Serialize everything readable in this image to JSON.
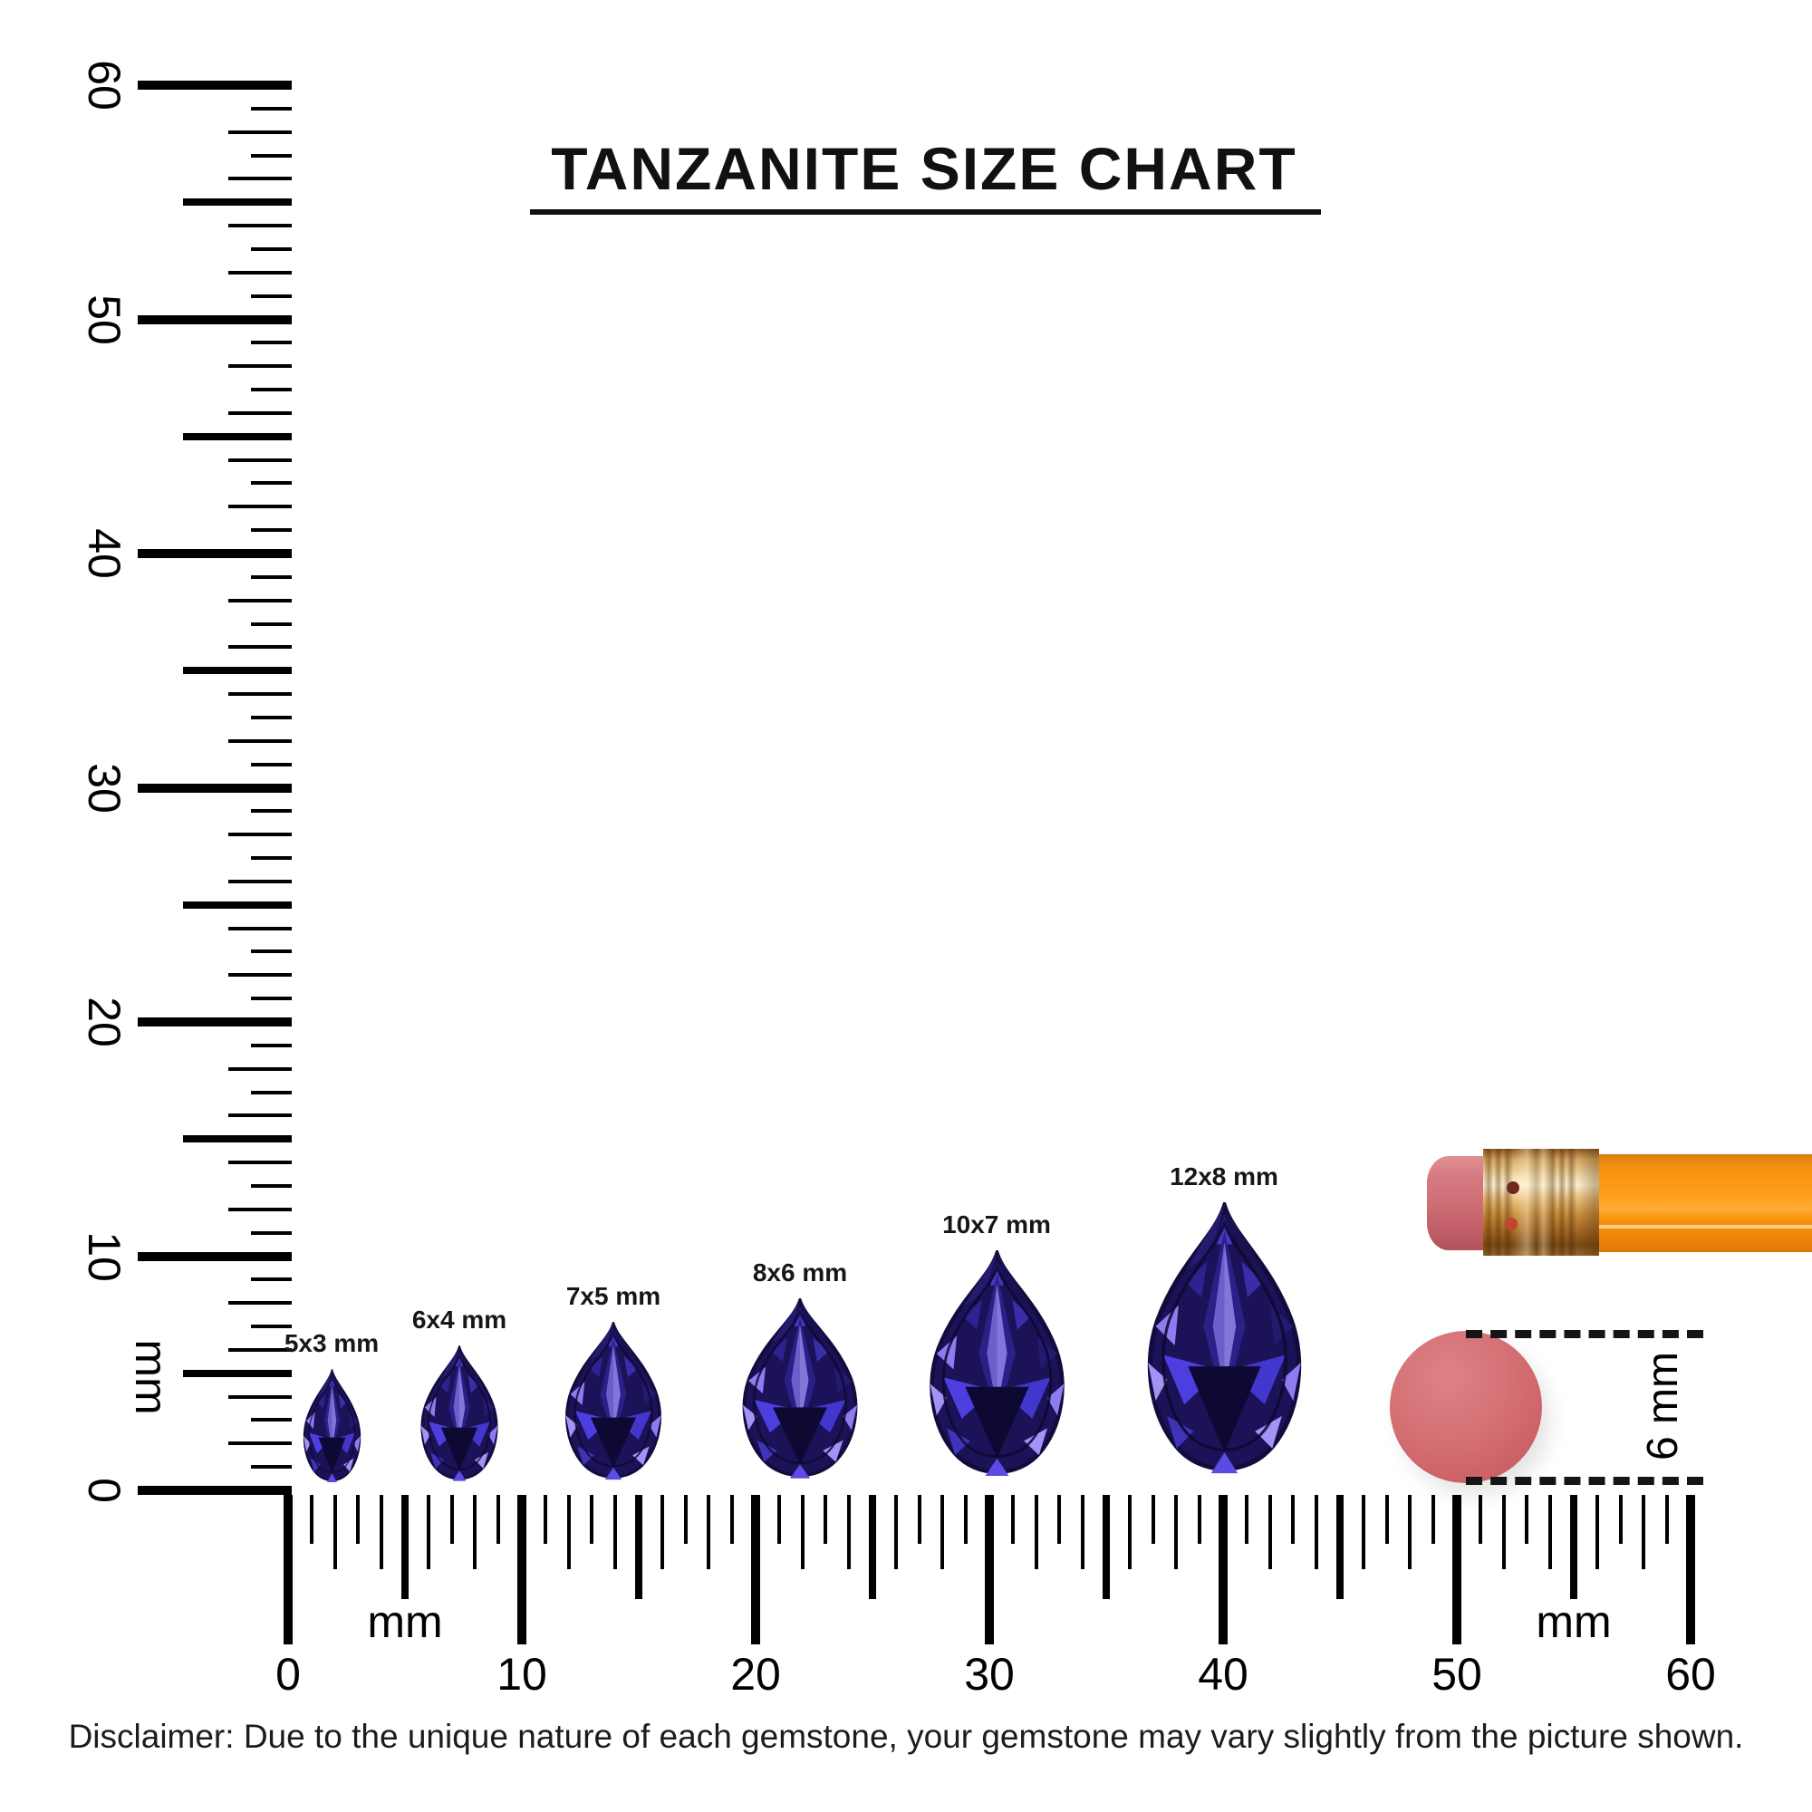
{
  "title": {
    "text": "TANZANITE SIZE CHART"
  },
  "vertical_ruler": {
    "unit": "mm",
    "numbers": [
      "0",
      "10",
      "20",
      "30",
      "40",
      "50",
      "60"
    ],
    "max_mm": 60
  },
  "horizontal_ruler": {
    "unit_left": "mm",
    "unit_right": "mm",
    "numbers": [
      "0",
      "10",
      "20",
      "30",
      "40",
      "50",
      "60"
    ],
    "max_mm": 60
  },
  "gems": [
    {
      "label": "5x3 mm",
      "length_mm": 5,
      "width_mm": 3
    },
    {
      "label": "6x4 mm",
      "length_mm": 6,
      "width_mm": 4
    },
    {
      "label": "7x5 mm",
      "length_mm": 7,
      "width_mm": 5
    },
    {
      "label": "8x6 mm",
      "length_mm": 8,
      "width_mm": 6
    },
    {
      "label": "10x7 mm",
      "length_mm": 10,
      "width_mm": 7
    },
    {
      "label": "12x8 mm",
      "length_mm": 12,
      "width_mm": 8
    }
  ],
  "eraser_measure": {
    "label": "6 mm",
    "diameter_mm": 6
  },
  "disclaimer": "Disclaimer: Due to the unique nature of each gemstone, your gemstone may vary slightly from the picture shown.",
  "colors": {
    "ink": "#111111",
    "gem_base": "#1b1257",
    "gem_outline": "#120c3e",
    "gem_dark": "#0e0933",
    "gem_deep": "#241a6e",
    "gem_mid": "#2b2088",
    "gem_bright": "#4d3ee0",
    "gem_light": "#8d7cf0",
    "gem_pale": "#a393f5",
    "gem_kite": "#8276d8",
    "eraser_pink": "#d06e76",
    "eraser_circle": "#d57377",
    "ferrule_gold": "#d9a964",
    "pencil_orange": "#f9970f",
    "dot_dark": "#6e2a1c",
    "dot_red": "#c2452f"
  }
}
